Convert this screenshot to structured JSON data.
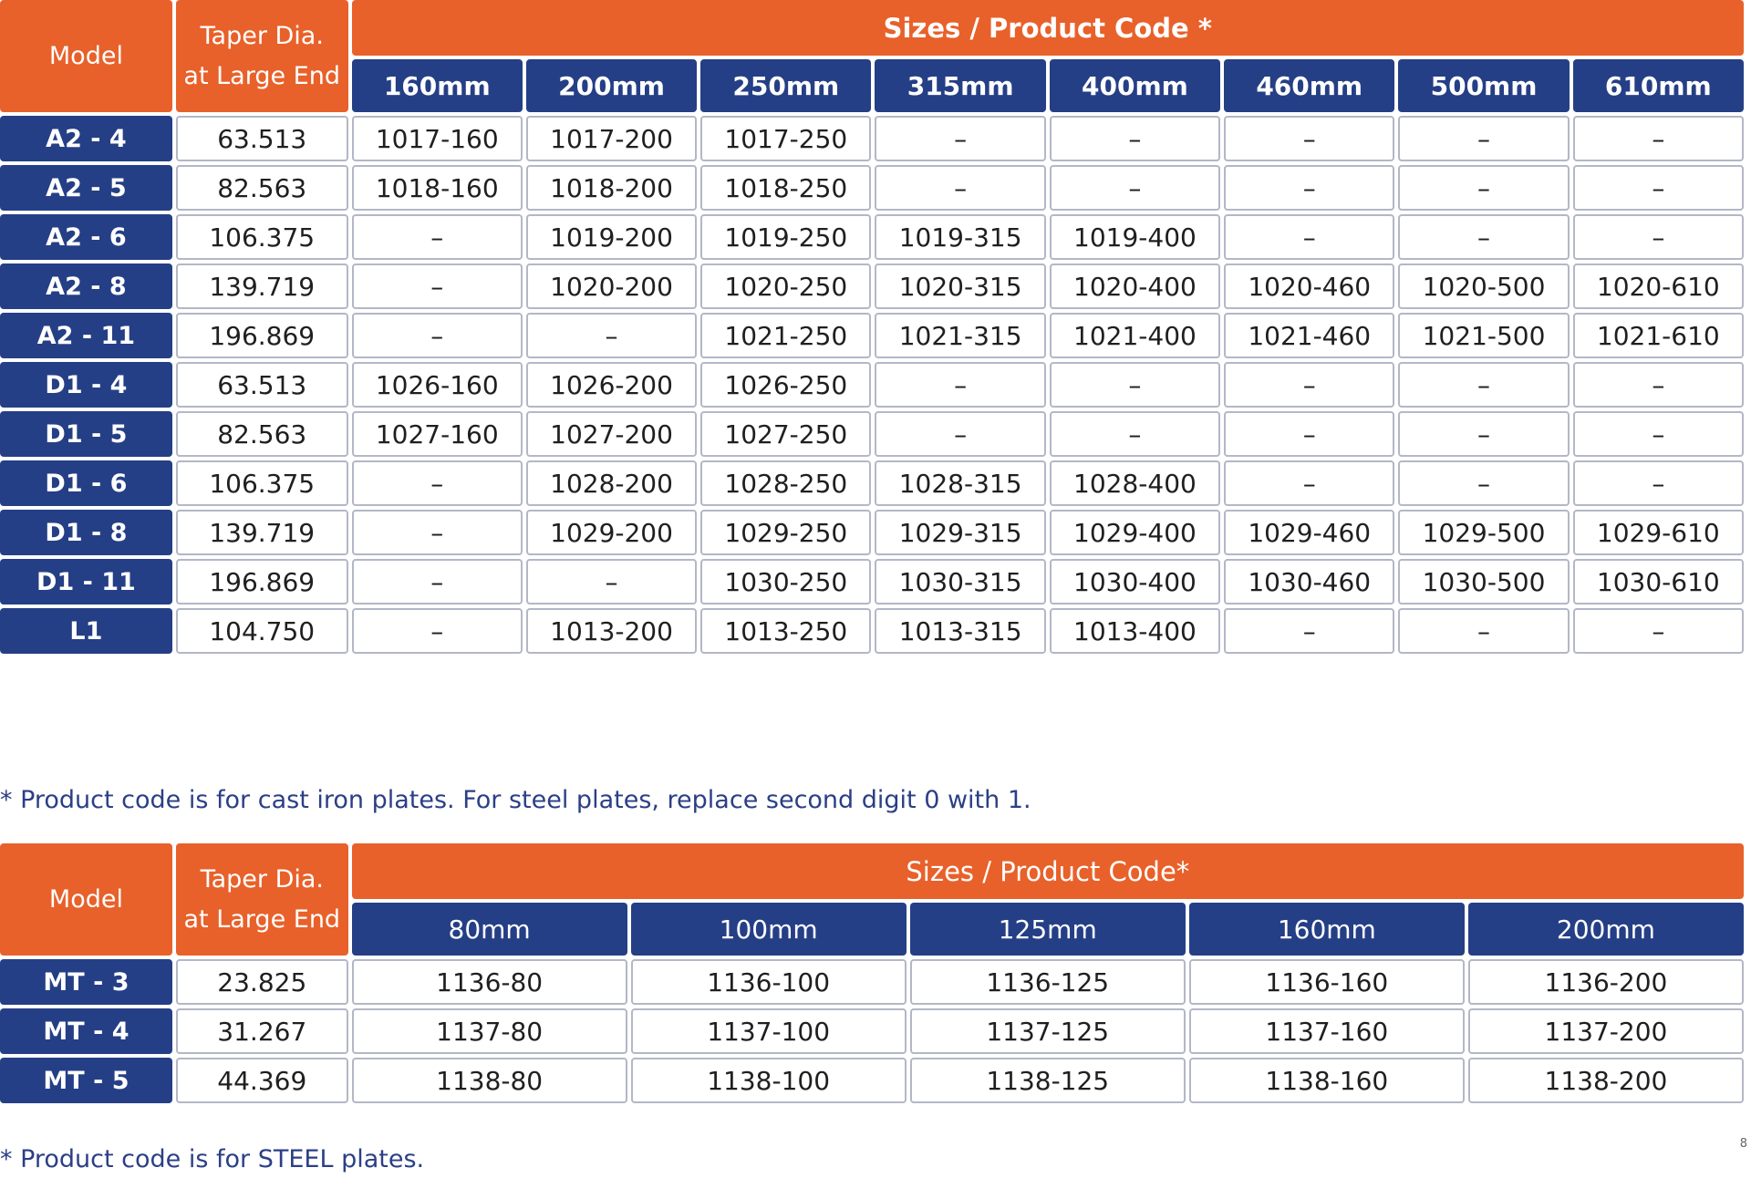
{
  "table1": {
    "model_header": "Model",
    "taper_header_line1": "Taper Dia.",
    "taper_header_line2": "at Large End",
    "sizes_header": "Sizes / Product Code *",
    "sizes": [
      "160mm",
      "200mm",
      "250mm",
      "315mm",
      "400mm",
      "460mm",
      "500mm",
      "610mm"
    ],
    "rows": [
      {
        "model": "A2 - 4",
        "taper": "63.513",
        "codes": [
          "1017-160",
          "1017-200",
          "1017-250",
          "–",
          "–",
          "–",
          "–",
          "–"
        ]
      },
      {
        "model": "A2 - 5",
        "taper": "82.563",
        "codes": [
          "1018-160",
          "1018-200",
          "1018-250",
          "–",
          "–",
          "–",
          "–",
          "–"
        ]
      },
      {
        "model": "A2 - 6",
        "taper": "106.375",
        "codes": [
          "–",
          "1019-200",
          "1019-250",
          "1019-315",
          "1019-400",
          "–",
          "–",
          "–"
        ]
      },
      {
        "model": "A2 - 8",
        "taper": "139.719",
        "codes": [
          "–",
          "1020-200",
          "1020-250",
          "1020-315",
          "1020-400",
          "1020-460",
          "1020-500",
          "1020-610"
        ]
      },
      {
        "model": "A2 - 11",
        "taper": "196.869",
        "codes": [
          "–",
          "–",
          "1021-250",
          "1021-315",
          "1021-400",
          "1021-460",
          "1021-500",
          "1021-610"
        ]
      },
      {
        "model": "D1 - 4",
        "taper": "63.513",
        "codes": [
          "1026-160",
          "1026-200",
          "1026-250",
          "–",
          "–",
          "–",
          "–",
          "–"
        ]
      },
      {
        "model": "D1 - 5",
        "taper": "82.563",
        "codes": [
          "1027-160",
          "1027-200",
          "1027-250",
          "–",
          "–",
          "–",
          "–",
          "–"
        ]
      },
      {
        "model": "D1 - 6",
        "taper": "106.375",
        "codes": [
          "–",
          "1028-200",
          "1028-250",
          "1028-315",
          "1028-400",
          "–",
          "–",
          "–"
        ]
      },
      {
        "model": "D1 - 8",
        "taper": "139.719",
        "codes": [
          "–",
          "1029-200",
          "1029-250",
          "1029-315",
          "1029-400",
          "1029-460",
          "1029-500",
          "1029-610"
        ]
      },
      {
        "model": "D1 - 11",
        "taper": "196.869",
        "codes": [
          "–",
          "–",
          "1030-250",
          "1030-315",
          "1030-400",
          "1030-460",
          "1030-500",
          "1030-610"
        ]
      },
      {
        "model": "L1",
        "taper": "104.750",
        "codes": [
          "–",
          "1013-200",
          "1013-250",
          "1013-315",
          "1013-400",
          "–",
          "–",
          "–"
        ]
      }
    ],
    "footnote": "* Product code is for cast iron plates. For steel plates, replace second digit 0 with 1."
  },
  "table2": {
    "model_header": "Model",
    "taper_header_line1": "Taper Dia.",
    "taper_header_line2": "at Large End",
    "sizes_header": "Sizes / Product Code*",
    "sizes": [
      "80mm",
      "100mm",
      "125mm",
      "160mm",
      "200mm"
    ],
    "rows": [
      {
        "model": "MT - 3",
        "taper": "23.825",
        "codes": [
          "1136-80",
          "1136-100",
          "1136-125",
          "1136-160",
          "1136-200"
        ]
      },
      {
        "model": "MT - 4",
        "taper": "31.267",
        "codes": [
          "1137-80",
          "1137-100",
          "1137-125",
          "1137-160",
          "1137-200"
        ]
      },
      {
        "model": "MT - 5",
        "taper": "44.369",
        "codes": [
          "1138-80",
          "1138-100",
          "1138-125",
          "1138-160",
          "1138-200"
        ]
      }
    ],
    "footnote": "* Product code is for STEEL plates."
  },
  "page_number": "8"
}
